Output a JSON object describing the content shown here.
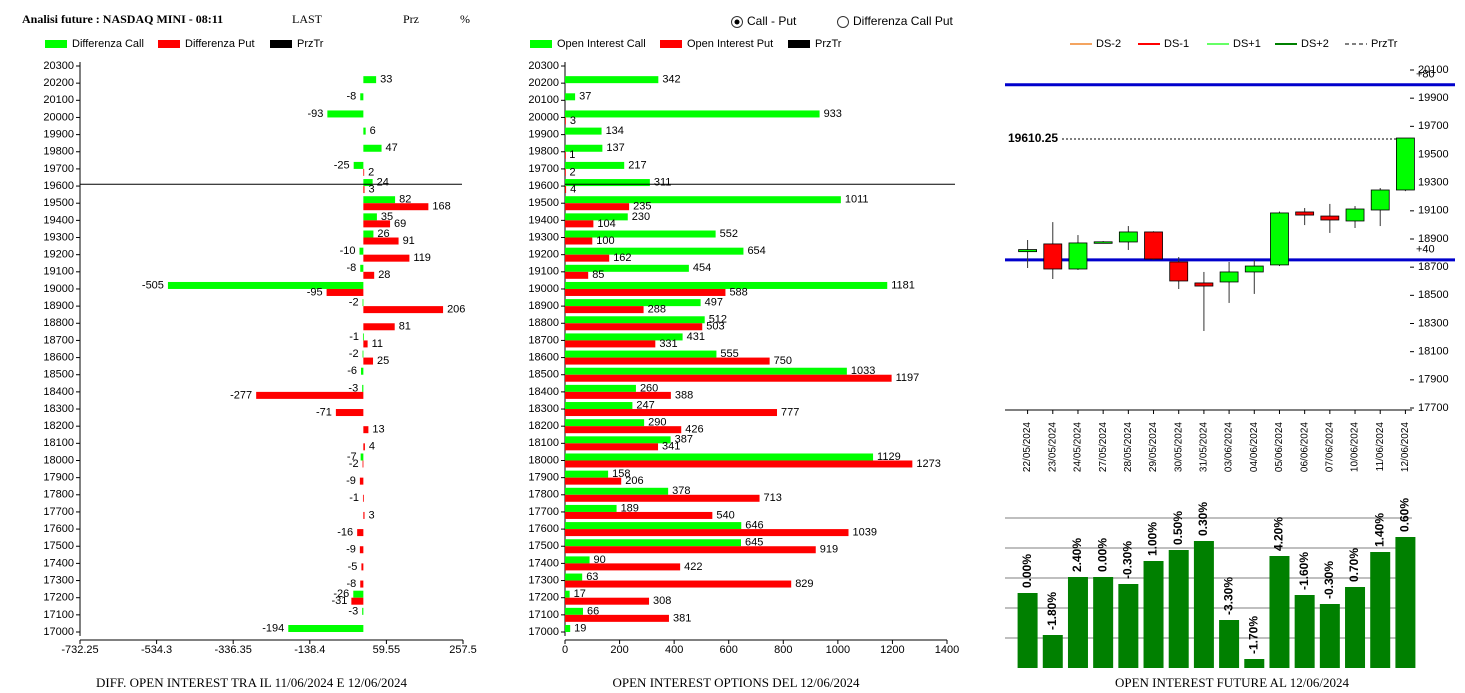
{
  "header": {
    "title": "Analisi future : NASDAQ MINI - 08:11",
    "fields": [
      "LAST",
      "Prz",
      "%"
    ],
    "options": [
      {
        "label": "Call - Put",
        "checked": true
      },
      {
        "label": "Differenza Call Put",
        "checked": false
      }
    ]
  },
  "chart_data": [
    {
      "type": "hbar",
      "title": "DIFF. OPEN INTEREST TRA IL 11/06/2024 E 12/06/2024",
      "categories": [
        20300,
        20200,
        20100,
        20000,
        19900,
        19800,
        19700,
        19600,
        19500,
        19400,
        19300,
        19200,
        19100,
        19000,
        18900,
        18800,
        18700,
        18600,
        18500,
        18400,
        18300,
        18200,
        18100,
        18000,
        17900,
        17800,
        17700,
        17600,
        17500,
        17400,
        17300,
        17200,
        17100,
        17000
      ],
      "series": [
        {
          "name": "Differenza Call",
          "color": "#00ff00",
          "values": [
            null,
            33,
            -8,
            -93,
            6,
            47,
            -25,
            24,
            82,
            35,
            26,
            -10,
            -8,
            -505,
            -2,
            null,
            -1,
            -2,
            -6,
            -3,
            null,
            null,
            null,
            -7,
            null,
            null,
            null,
            null,
            null,
            null,
            null,
            -26,
            -3,
            -194
          ]
        },
        {
          "name": "Differenza Put",
          "color": "#ff0000",
          "values": [
            null,
            null,
            null,
            null,
            null,
            null,
            2,
            3,
            168,
            69,
            91,
            119,
            28,
            -95,
            206,
            81,
            11,
            25,
            null,
            -277,
            -71,
            13,
            4,
            -2,
            -9,
            -1,
            3,
            -16,
            -9,
            -5,
            -8,
            -31,
            null,
            null
          ]
        }
      ],
      "przTr": {
        "name": "PrzTr",
        "value": 19610.25,
        "color": "#000000"
      },
      "xlim": [
        -732.25,
        257.5
      ],
      "xticks": [
        -732.25,
        -534.3,
        -336.35,
        -138.4,
        59.55,
        257.5
      ],
      "ylim": [
        17000,
        20300
      ],
      "yticks": [
        20300,
        20200,
        20100,
        20000,
        19900,
        19800,
        19700,
        19600,
        19500,
        19400,
        19300,
        19200,
        19100,
        19000,
        18900,
        18800,
        18700,
        18600,
        18500,
        18400,
        18300,
        18200,
        18100,
        18000,
        17900,
        17800,
        17700,
        17600,
        17500,
        17400,
        17300,
        17200,
        17100,
        17000
      ]
    },
    {
      "type": "hbar",
      "title": "OPEN INTEREST OPTIONS DEL 12/06/2024",
      "categories": [
        20300,
        20200,
        20100,
        20000,
        19900,
        19800,
        19700,
        19600,
        19500,
        19400,
        19300,
        19200,
        19100,
        19000,
        18900,
        18800,
        18700,
        18600,
        18500,
        18400,
        18300,
        18200,
        18100,
        18000,
        17900,
        17800,
        17700,
        17600,
        17500,
        17400,
        17300,
        17200,
        17100,
        17000
      ],
      "series": [
        {
          "name": "Open Interest Call",
          "color": "#00ff00",
          "values": [
            null,
            342,
            37,
            933,
            134,
            137,
            217,
            311,
            1011,
            230,
            552,
            654,
            454,
            1181,
            497,
            512,
            431,
            555,
            1033,
            260,
            247,
            290,
            387,
            1129,
            158,
            378,
            189,
            646,
            645,
            90,
            63,
            17,
            66,
            19
          ]
        },
        {
          "name": "Open Interest Put",
          "color": "#ff0000",
          "values": [
            null,
            null,
            null,
            3,
            null,
            1,
            2,
            4,
            235,
            104,
            100,
            162,
            85,
            588,
            288,
            503,
            331,
            750,
            1197,
            388,
            777,
            426,
            341,
            1273,
            206,
            713,
            540,
            1039,
            919,
            422,
            829,
            308,
            381,
            null
          ]
        }
      ],
      "przTr": {
        "name": "PrzTr",
        "value": 19610.25,
        "color": "#000000"
      },
      "xlim": [
        0,
        1400
      ],
      "xticks": [
        0,
        200,
        400,
        600,
        800,
        1000,
        1200,
        1400
      ],
      "ylim": [
        17000,
        20300
      ],
      "yticks": [
        20300,
        20200,
        20100,
        20000,
        19900,
        19800,
        19700,
        19600,
        19500,
        19400,
        19300,
        19200,
        19100,
        19000,
        18900,
        18800,
        18700,
        18600,
        18500,
        18400,
        18300,
        18200,
        18100,
        18000,
        17900,
        17800,
        17700,
        17600,
        17500,
        17400,
        17300,
        17200,
        17100,
        17000
      ]
    },
    {
      "type": "candlestick",
      "categories": [
        "22/05/2024",
        "23/05/2024",
        "24/05/2024",
        "27/05/2024",
        "28/05/2024",
        "29/05/2024",
        "30/05/2024",
        "31/05/2024",
        "03/06/2024",
        "04/06/2024",
        "05/06/2024",
        "06/06/2024",
        "07/06/2024",
        "10/06/2024",
        "11/06/2024",
        "12/06/2024"
      ],
      "open": [
        18810,
        18865,
        18687,
        18875,
        18879,
        18950,
        18737,
        18588,
        18595,
        18666,
        18716,
        19092,
        19063,
        19028,
        19106,
        19248
      ],
      "high": [
        18893,
        19020,
        18928,
        18885,
        18992,
        18955,
        18772,
        18666,
        18737,
        18751,
        19095,
        19120,
        19149,
        19134,
        19262,
        19617
      ],
      "low": [
        18694,
        18616,
        18680,
        18870,
        18822,
        18750,
        18545,
        18247,
        18446,
        18510,
        18708,
        18999,
        18943,
        18978,
        18992,
        19240
      ],
      "close": [
        18825,
        18687,
        18872,
        18880,
        18950,
        18758,
        18602,
        18566,
        18666,
        18708,
        19085,
        19070,
        19035,
        19113,
        19248,
        19617
      ],
      "up_color": "#00ff00",
      "down_color": "#ff0000",
      "legend": [
        {
          "name": "DS-2",
          "color": "#f4a460"
        },
        {
          "name": "DS-1",
          "color": "#ff0000"
        },
        {
          "name": "DS+1",
          "color": "#66ff66"
        },
        {
          "name": "DS+2",
          "color": "#008000"
        }
      ],
      "przTr": {
        "name": "PrzTr",
        "value": 19610.25,
        "color": "#000000"
      },
      "hlines": [
        {
          "value": 19995,
          "label": "+80"
        },
        {
          "value": 18752,
          "label": "+40"
        }
      ],
      "hline_color": "#0000cc",
      "ylim": [
        17700,
        20100
      ],
      "yticks": [
        20100,
        19900,
        19700,
        19500,
        19300,
        19100,
        18900,
        18700,
        18500,
        18300,
        18100,
        17900,
        17700
      ]
    },
    {
      "type": "bar",
      "title": "OPEN INTEREST FUTURE AL 12/06/2024",
      "values": [
        75,
        33,
        91,
        91,
        84,
        107,
        118,
        127,
        48,
        9,
        112,
        73,
        64,
        81,
        116,
        131
      ],
      "labels": [
        "0.00%",
        "-1.80%",
        "2.40%",
        "0.00%",
        "-0.30%",
        "1.00%",
        "0.50%",
        "0.30%",
        "-3.30%",
        "-1.70%",
        "4.20%",
        "-1.60%",
        "-0.30%",
        "0.70%",
        "1.40%",
        "0.60%"
      ],
      "color": "#008000",
      "ylim": [
        0,
        150
      ],
      "gridlines": [
        30,
        60,
        90,
        120,
        150
      ]
    }
  ]
}
